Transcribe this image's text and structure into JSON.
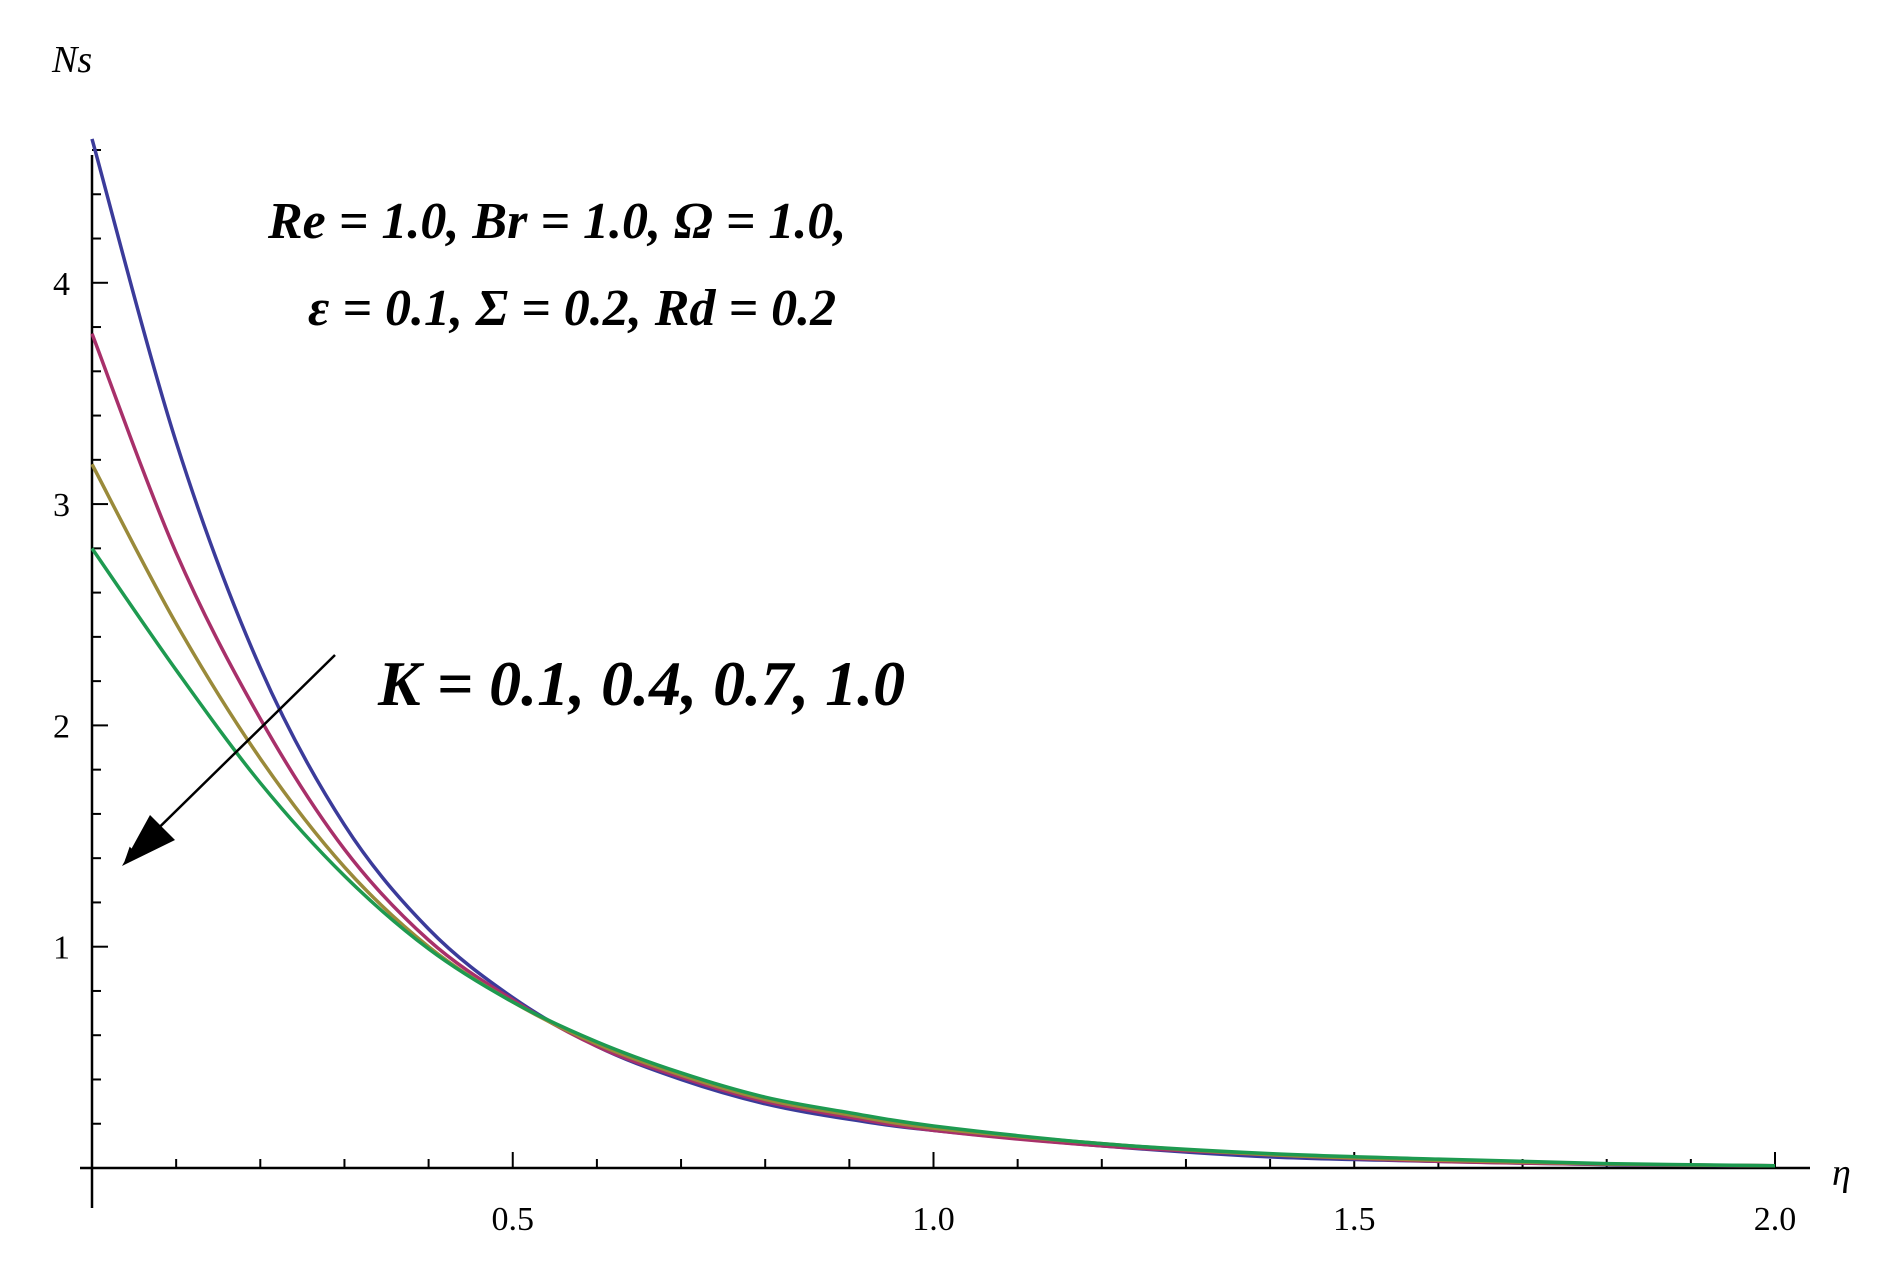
{
  "chart_data": {
    "type": "line",
    "title": "",
    "xlabel": "η",
    "ylabel": "Ns",
    "xlim": [
      0,
      2.05
    ],
    "ylim": [
      0,
      4.7
    ],
    "x_ticks": [
      0.5,
      1.0,
      1.5,
      2.0
    ],
    "x_tick_labels": [
      "0.5",
      "1.0",
      "1.5",
      "2.0"
    ],
    "y_ticks": [
      1,
      2,
      3,
      4
    ],
    "y_tick_labels": [
      "1",
      "2",
      "3",
      "4"
    ],
    "grid": false,
    "legend": "none",
    "x": [
      0.0,
      0.1,
      0.2,
      0.3,
      0.4,
      0.5,
      0.6,
      0.7,
      0.8,
      0.9,
      1.0,
      1.2,
      1.4,
      1.6,
      1.8,
      2.0
    ],
    "series": [
      {
        "color": "#3b3b9a",
        "values": [
          4.65,
          3.28,
          2.26,
          1.55,
          1.08,
          0.77,
          0.55,
          0.4,
          0.29,
          0.22,
          0.17,
          0.1,
          0.05,
          0.03,
          0.015,
          0.01
        ]
      },
      {
        "color": "#a8306a",
        "values": [
          3.77,
          2.78,
          2.03,
          1.44,
          1.03,
          0.76,
          0.55,
          0.41,
          0.3,
          0.23,
          0.17,
          0.1,
          0.06,
          0.03,
          0.017,
          0.01
        ]
      },
      {
        "color": "#9a8a3a",
        "values": [
          3.18,
          2.46,
          1.85,
          1.36,
          1.0,
          0.75,
          0.56,
          0.42,
          0.31,
          0.24,
          0.18,
          0.11,
          0.06,
          0.035,
          0.018,
          0.01
        ]
      },
      {
        "color": "#1e9a50",
        "values": [
          2.8,
          2.25,
          1.74,
          1.32,
          0.99,
          0.75,
          0.57,
          0.43,
          0.32,
          0.25,
          0.19,
          0.11,
          0.065,
          0.04,
          0.02,
          0.01
        ]
      }
    ],
    "annotations": {
      "params_line1": "Re = 1.0, Br = 1.0, Ω = 1.0,",
      "params_line2": "ε = 0.1, Σ = 0.2, Rd = 0.2",
      "k_label": "K = 0.1, 0.4, 0.7, 1.0"
    }
  }
}
